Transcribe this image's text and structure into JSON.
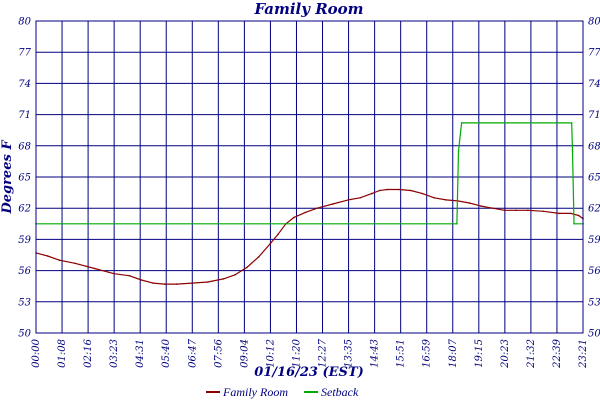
{
  "chart_data": {
    "type": "line",
    "title": "Family Room",
    "xlabel": "01/16/23 (EST)",
    "ylabel": "Degrees F",
    "ylim": [
      50,
      80
    ],
    "y_ticks": [
      "50",
      "53",
      "56",
      "59",
      "62",
      "65",
      "68",
      "71",
      "74",
      "77",
      "80"
    ],
    "x_tick_labels": [
      "00:00",
      "01:08",
      "02:16",
      "03:23",
      "04:31",
      "05:40",
      "06:47",
      "07:56",
      "09:04",
      "10:12",
      "11:20",
      "12:27",
      "13:35",
      "14:43",
      "15:51",
      "16:59",
      "18:07",
      "19:15",
      "20:23",
      "21:32",
      "22:39",
      "23:21"
    ],
    "x_range_minutes": [
      0,
      1401
    ],
    "grid": true,
    "legend_position": "bottom",
    "colors": {
      "family_room": "#8b0000",
      "setback": "#00aa00",
      "grid": "#000080",
      "text": "#000080"
    },
    "series": [
      {
        "name": "Family Room",
        "x_minutes": [
          0,
          30,
          60,
          100,
          150,
          200,
          240,
          270,
          300,
          330,
          360,
          400,
          440,
          480,
          510,
          540,
          570,
          600,
          620,
          640,
          660,
          690,
          720,
          760,
          800,
          830,
          860,
          880,
          900,
          930,
          960,
          990,
          1020,
          1050,
          1080,
          1110,
          1140,
          1170,
          1200,
          1230,
          1260,
          1300,
          1340,
          1370,
          1390,
          1401
        ],
        "values": [
          57.7,
          57.4,
          57.0,
          56.7,
          56.2,
          55.7,
          55.5,
          55.1,
          54.8,
          54.7,
          54.7,
          54.8,
          54.9,
          55.2,
          55.6,
          56.3,
          57.3,
          58.6,
          59.5,
          60.5,
          61.1,
          61.6,
          62.0,
          62.4,
          62.8,
          63.0,
          63.4,
          63.7,
          63.8,
          63.8,
          63.7,
          63.4,
          63.0,
          62.8,
          62.7,
          62.5,
          62.2,
          62.0,
          61.8,
          61.8,
          61.8,
          61.7,
          61.5,
          61.5,
          61.3,
          61.0
        ]
      },
      {
        "name": "Setback",
        "x_minutes": [
          0,
          1078,
          1082,
          1090,
          1372,
          1374,
          1378,
          1401
        ],
        "values": [
          60.5,
          60.5,
          67.5,
          70.2,
          70.2,
          67.5,
          60.5,
          60.5
        ]
      }
    ]
  },
  "legend": {
    "items": [
      "Family Room",
      "Setback"
    ]
  }
}
